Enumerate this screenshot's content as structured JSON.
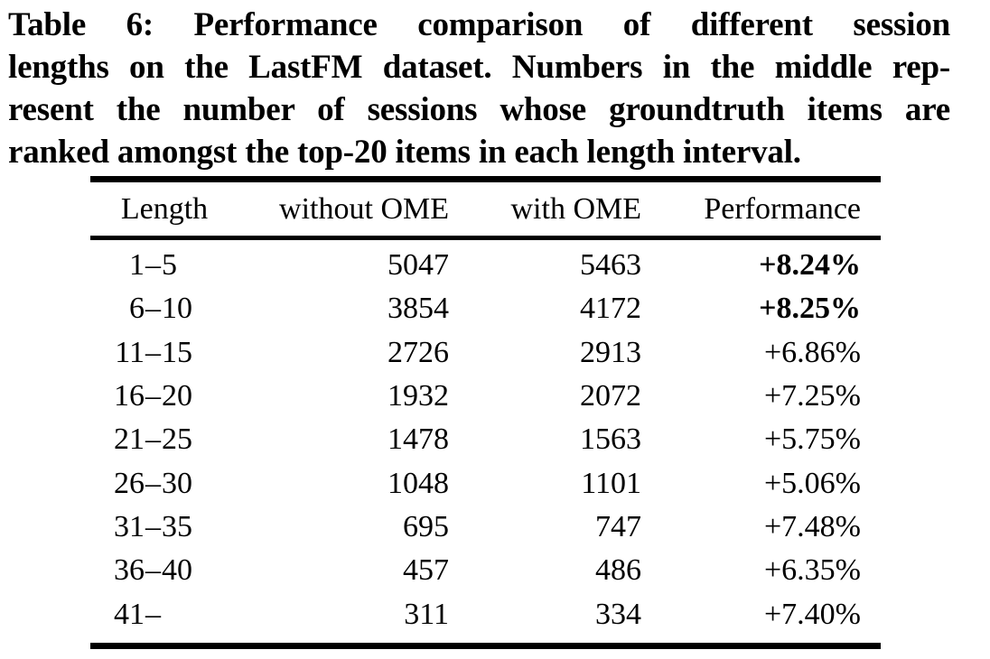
{
  "caption": {
    "label": "Table 6:",
    "lines": [
      "Table 6: Performance comparison of different session",
      "lengths on the LastFM dataset. Numbers in the middle rep-",
      "resent the number of sessions whose groundtruth items are",
      "ranked amongst the top-20 items in each length interval."
    ]
  },
  "table": {
    "headers": [
      "Length",
      "without OME",
      "with OME",
      "Performance"
    ],
    "rows": [
      {
        "length_from": "1",
        "length_sep": "–",
        "length_to": "5",
        "without_ome": "5047",
        "with_ome": "5463",
        "performance": "+8.24%",
        "bold_performance": true
      },
      {
        "length_from": "6",
        "length_sep": "–",
        "length_to": "10",
        "without_ome": "3854",
        "with_ome": "4172",
        "performance": "+8.25%",
        "bold_performance": true
      },
      {
        "length_from": "11",
        "length_sep": "–",
        "length_to": "15",
        "without_ome": "2726",
        "with_ome": "2913",
        "performance": "+6.86%",
        "bold_performance": false
      },
      {
        "length_from": "16",
        "length_sep": "–",
        "length_to": "20",
        "without_ome": "1932",
        "with_ome": "2072",
        "performance": "+7.25%",
        "bold_performance": false
      },
      {
        "length_from": "21",
        "length_sep": "–",
        "length_to": "25",
        "without_ome": "1478",
        "with_ome": "1563",
        "performance": "+5.75%",
        "bold_performance": false
      },
      {
        "length_from": "26",
        "length_sep": "–",
        "length_to": "30",
        "without_ome": "1048",
        "with_ome": "1101",
        "performance": "+5.06%",
        "bold_performance": false
      },
      {
        "length_from": "31",
        "length_sep": "–",
        "length_to": "35",
        "without_ome": "695",
        "with_ome": "747",
        "performance": "+7.48%",
        "bold_performance": false
      },
      {
        "length_from": "36",
        "length_sep": "–",
        "length_to": "40",
        "without_ome": "457",
        "with_ome": "486",
        "performance": "+6.35%",
        "bold_performance": false
      },
      {
        "length_from": "41",
        "length_sep": "–",
        "length_to": "",
        "without_ome": "311",
        "with_ome": "334",
        "performance": "+7.40%",
        "bold_performance": false
      }
    ]
  },
  "colors": {
    "text": "#000000",
    "background": "#ffffff",
    "rule": "#000000"
  }
}
